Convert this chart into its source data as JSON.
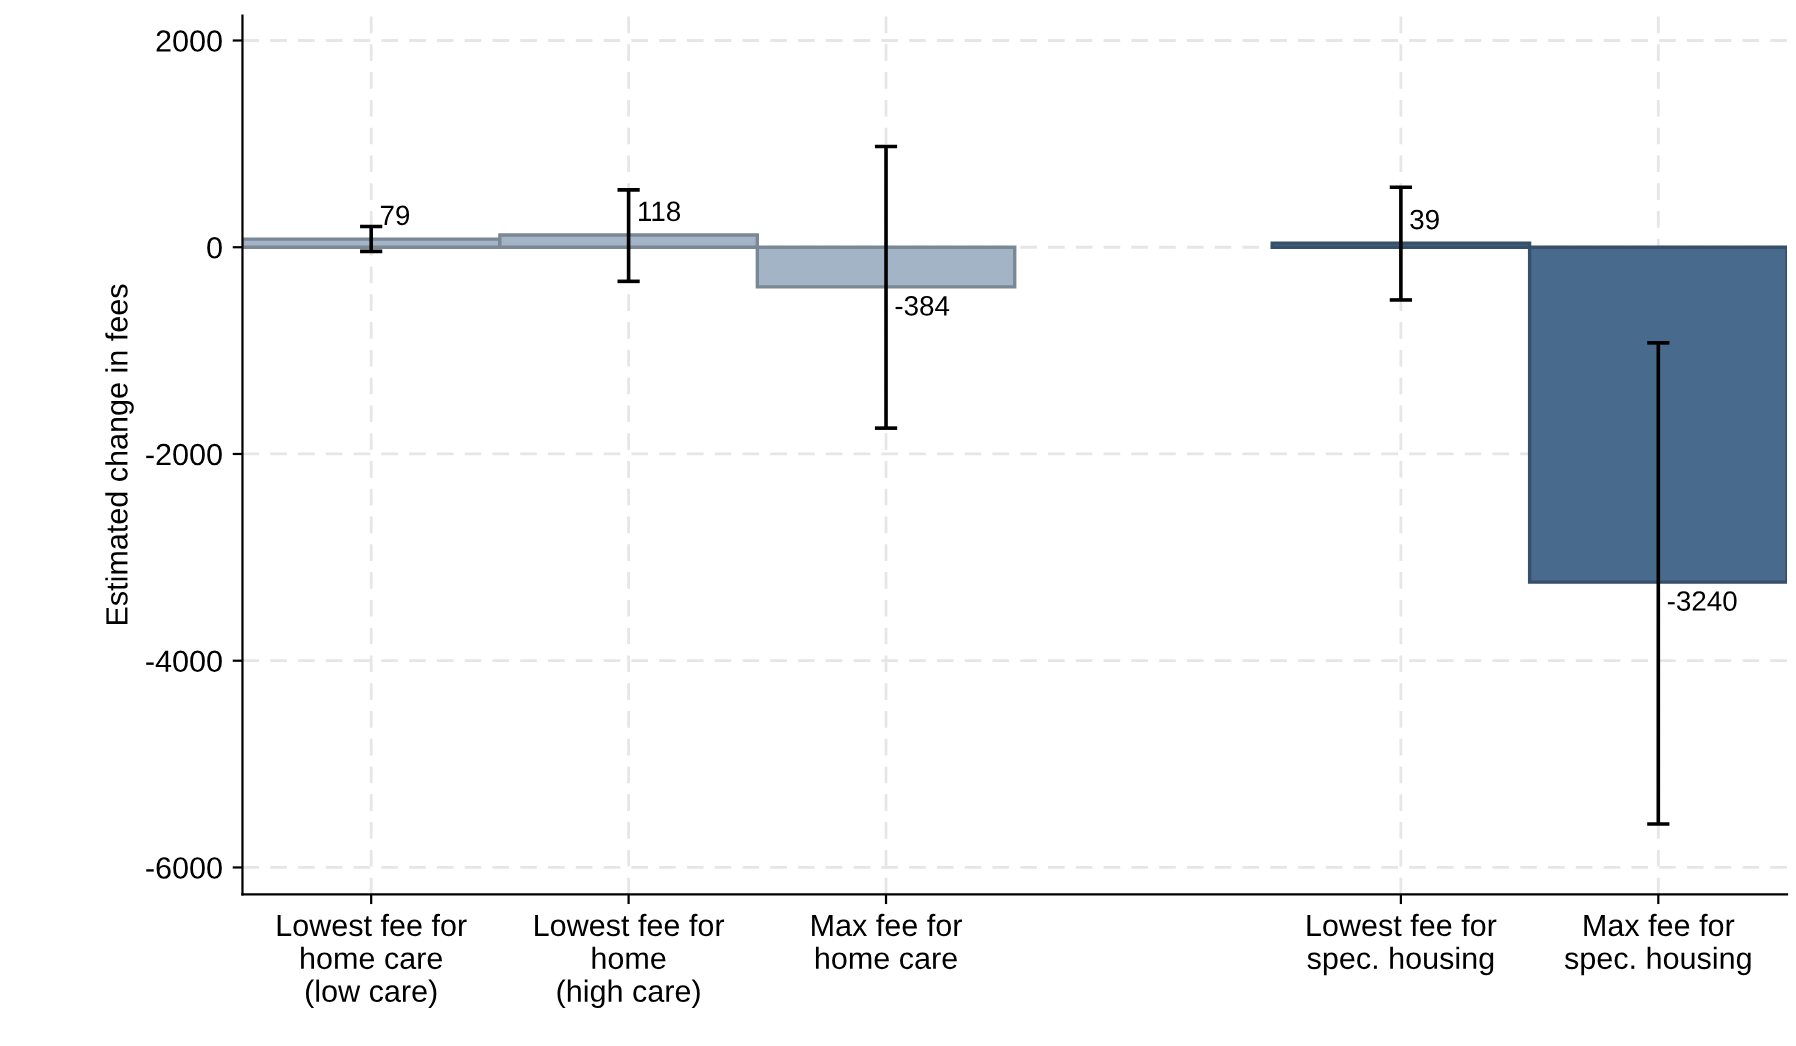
{
  "chart_data": {
    "type": "bar",
    "ylabel": "Estimated change in fees",
    "categories": [
      "Lowest fee for\nhome care\n(low care)",
      "Lowest fee for\nhome\n(high care)",
      "Max fee for\nhome care",
      null,
      "Lowest fee for\nspec. housing",
      "Max fee for\nspec. housing"
    ],
    "values": [
      79,
      118,
      -384,
      null,
      39,
      -3240
    ],
    "colors": [
      "#a3b4c6",
      "#a3b4c6",
      "#a3b4c6",
      "#a3b4c6",
      "#486a8c",
      "#486a8c"
    ],
    "errors": [
      [
        -40,
        200
      ],
      [
        -330,
        555
      ],
      [
        -1750,
        975
      ],
      null,
      [
        -510,
        580
      ],
      [
        -5580,
        -925
      ]
    ],
    "data_labels": true,
    "ylim": [
      -6260,
      2240
    ],
    "yticks": [
      -6000,
      -4000,
      -2000,
      0,
      2000
    ],
    "grid": true,
    "legend": false
  }
}
